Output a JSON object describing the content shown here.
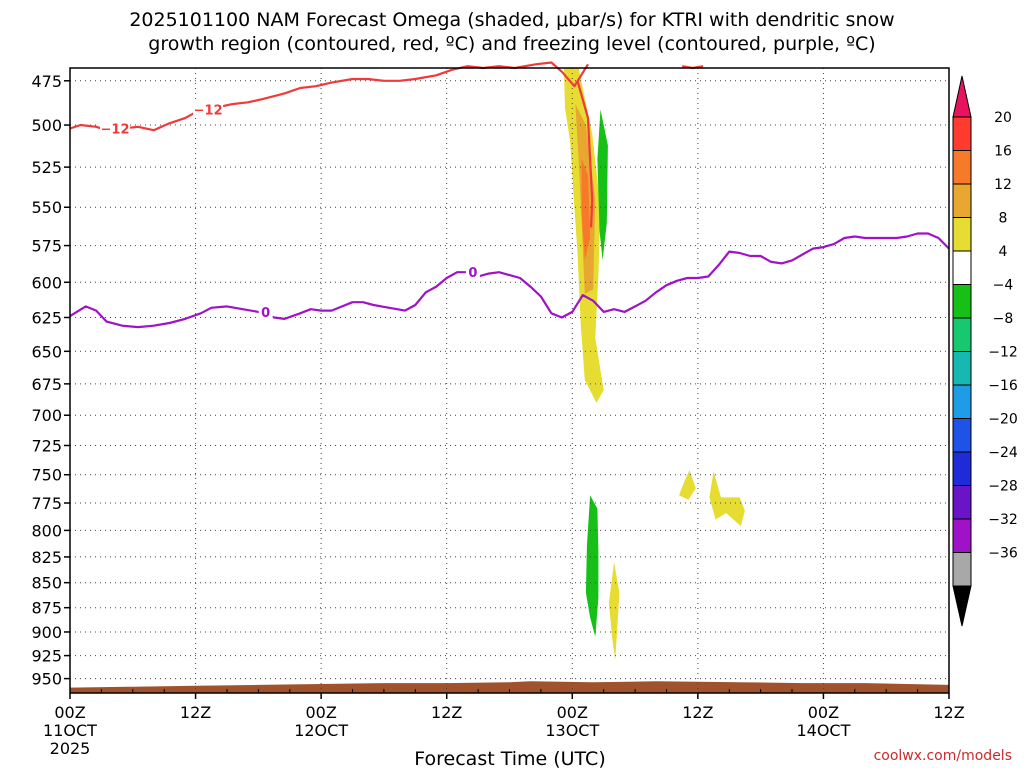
{
  "title_line1": "2025101100 NAM Forecast Omega (shaded, μbar/s) for KTRI with dendritic snow",
  "title_line2": "growth region (contoured, red, ºC) and freezing level (contoured, purple, ºC)",
  "credit": "coolwx.com/models",
  "chart_data": {
    "type": "time-height cross section",
    "xlabel": "Forecast Time (UTC)",
    "x_ticks": [
      {
        "h": 0,
        "line1": "00Z",
        "line2": "11OCT",
        "line3": "2025"
      },
      {
        "h": 12,
        "line1": "12Z",
        "line2": "",
        "line3": ""
      },
      {
        "h": 24,
        "line1": "00Z",
        "line2": "12OCT",
        "line3": ""
      },
      {
        "h": 36,
        "line1": "12Z",
        "line2": "",
        "line3": ""
      },
      {
        "h": 48,
        "line1": "00Z",
        "line2": "13OCT",
        "line3": ""
      },
      {
        "h": 60,
        "line1": "12Z",
        "line2": "",
        "line3": ""
      },
      {
        "h": 72,
        "line1": "00Z",
        "line2": "14OCT",
        "line3": ""
      },
      {
        "h": 84,
        "line1": "12Z",
        "line2": "",
        "line3": ""
      }
    ],
    "xlim_hours": [
      0,
      84
    ],
    "y_ticks": [
      475,
      500,
      525,
      550,
      575,
      600,
      625,
      650,
      675,
      700,
      725,
      750,
      775,
      800,
      825,
      850,
      875,
      900,
      925,
      950
    ],
    "ylim_hPa": [
      966,
      468
    ],
    "y_scale": "log-pressure, inverted",
    "grid": true,
    "colorbar": {
      "labels": [
        "20",
        "16",
        "12",
        "8",
        "4",
        "−4",
        "−8",
        "−12",
        "−16",
        "−20",
        "−24",
        "−28",
        "−32",
        "−36"
      ],
      "colors": [
        "#e8135f",
        "#ff3b2f",
        "#f7792a",
        "#e8a730",
        "#e6dc32",
        "#ffffff",
        "#17c017",
        "#17c870",
        "#17b8b0",
        "#1f9ce6",
        "#1f52e6",
        "#1f2ad8",
        "#6a14c8",
        "#a012c8",
        "#a8a8a8",
        "#000000"
      ]
    },
    "contours": [
      {
        "name": "-12",
        "level": -12,
        "color": "#f03a3a",
        "points": [
          [
            0,
            502
          ],
          [
            1,
            500
          ],
          [
            2.5,
            501
          ],
          [
            3.5,
            503
          ],
          [
            5,
            502
          ],
          [
            6.5,
            501
          ],
          [
            8,
            503
          ],
          [
            9.5,
            499
          ],
          [
            11,
            496
          ],
          [
            12.5,
            491
          ],
          [
            14,
            490
          ],
          [
            15.5,
            488
          ],
          [
            17,
            487
          ],
          [
            18.5,
            485
          ],
          [
            20.5,
            482
          ],
          [
            22,
            479
          ],
          [
            23.5,
            478
          ],
          [
            25,
            476
          ],
          [
            27,
            474
          ],
          [
            28.5,
            474
          ],
          [
            30,
            475
          ],
          [
            31.5,
            475
          ],
          [
            33,
            474
          ],
          [
            35,
            472
          ],
          [
            36.5,
            469
          ],
          [
            38,
            467
          ],
          [
            39.5,
            468
          ],
          [
            41,
            467
          ],
          [
            42.5,
            468
          ],
          [
            44.5,
            466
          ],
          [
            46,
            465
          ],
          [
            47,
            470
          ],
          [
            48.2,
            478
          ],
          [
            49.5,
            466
          ]
        ]
      },
      {
        "name": "-12",
        "level": -12,
        "color": "#f03a3a",
        "points": [
          [
            48.5,
            475
          ],
          [
            49.5,
            496
          ],
          [
            49.7,
            520
          ],
          [
            49.9,
            545
          ],
          [
            49.8,
            563
          ]
        ]
      },
      {
        "name": "",
        "level": -12,
        "color": "#f03a3a",
        "points": [
          [
            58.5,
            467
          ],
          [
            59.5,
            468
          ],
          [
            60.5,
            467
          ]
        ]
      },
      {
        "name": "0",
        "level": 0,
        "color": "#a012c8",
        "points": [
          [
            0,
            624
          ],
          [
            1.5,
            617
          ],
          [
            2.5,
            620
          ],
          [
            3.5,
            628
          ],
          [
            5,
            631
          ],
          [
            6.5,
            632
          ],
          [
            8,
            631
          ],
          [
            9.5,
            629
          ],
          [
            11,
            626
          ],
          [
            12.5,
            622
          ],
          [
            13.5,
            618
          ],
          [
            15,
            617
          ],
          [
            16.5,
            619
          ],
          [
            18,
            621
          ],
          [
            19.5,
            625
          ],
          [
            20.5,
            626
          ],
          [
            22,
            622
          ],
          [
            23,
            619
          ],
          [
            24,
            620
          ],
          [
            25,
            620
          ],
          [
            26,
            617
          ],
          [
            27,
            614
          ],
          [
            28,
            614
          ],
          [
            29,
            616
          ],
          [
            30.5,
            618
          ],
          [
            32,
            620
          ],
          [
            33,
            616
          ],
          [
            34,
            607
          ],
          [
            35,
            603
          ],
          [
            36,
            597
          ],
          [
            37,
            593
          ],
          [
            38,
            593
          ],
          [
            39,
            596
          ],
          [
            40,
            594
          ],
          [
            41,
            593
          ],
          [
            42,
            595
          ],
          [
            43,
            597
          ],
          [
            44,
            603
          ],
          [
            45,
            610
          ],
          [
            46,
            622
          ],
          [
            47,
            625
          ],
          [
            48,
            621
          ],
          [
            49,
            609
          ],
          [
            50,
            613
          ],
          [
            51,
            621
          ],
          [
            52,
            619
          ],
          [
            53,
            621
          ],
          [
            54,
            617
          ],
          [
            55,
            613
          ],
          [
            56,
            607
          ],
          [
            57,
            602
          ],
          [
            58,
            599
          ],
          [
            59,
            597
          ],
          [
            60,
            597
          ],
          [
            61,
            596
          ],
          [
            62,
            588
          ],
          [
            63,
            579
          ],
          [
            64,
            580
          ],
          [
            65,
            582
          ],
          [
            66,
            582
          ],
          [
            67,
            586
          ],
          [
            68,
            587
          ],
          [
            69,
            585
          ],
          [
            70,
            581
          ],
          [
            71,
            577
          ],
          [
            72,
            576
          ],
          [
            73,
            574
          ],
          [
            74,
            570
          ],
          [
            75,
            569
          ],
          [
            76,
            570
          ],
          [
            77,
            570
          ],
          [
            78,
            570
          ],
          [
            79,
            570
          ],
          [
            80,
            569
          ],
          [
            81,
            567
          ],
          [
            82,
            567
          ],
          [
            83,
            570
          ],
          [
            84,
            577
          ]
        ]
      }
    ],
    "omega_regions": [
      {
        "value": 4,
        "color": "#e6dc32",
        "points": [
          [
            47.2,
            468
          ],
          [
            48.6,
            468
          ],
          [
            49.9,
            505
          ],
          [
            50.7,
            550
          ],
          [
            50.5,
            595
          ],
          [
            50.2,
            640
          ],
          [
            51.0,
            680
          ],
          [
            50.3,
            690
          ],
          [
            49.2,
            672
          ],
          [
            48.8,
            630
          ],
          [
            48.5,
            580
          ],
          [
            48.1,
            540
          ],
          [
            47.8,
            510
          ],
          [
            47.3,
            490
          ]
        ]
      },
      {
        "value": 8,
        "color": "#e8a730",
        "points": [
          [
            48.3,
            488
          ],
          [
            49.3,
            500
          ],
          [
            50.2,
            545
          ],
          [
            50.0,
            605
          ],
          [
            49.2,
            608
          ],
          [
            48.9,
            560
          ],
          [
            48.6,
            520
          ]
        ]
      },
      {
        "value": 12,
        "color": "#f7792a",
        "points": [
          [
            48.9,
            520
          ],
          [
            49.5,
            530
          ],
          [
            49.7,
            570
          ],
          [
            49.2,
            585
          ],
          [
            48.9,
            555
          ]
        ]
      },
      {
        "value": -8,
        "color": "#17c017",
        "points": [
          [
            50.7,
            491
          ],
          [
            51.4,
            512
          ],
          [
            51.3,
            560
          ],
          [
            50.9,
            585
          ],
          [
            50.6,
            565
          ],
          [
            50.4,
            520
          ]
        ]
      },
      {
        "value": 4,
        "color": "#e6dc32",
        "points": [
          [
            59.2,
            746
          ],
          [
            59.8,
            762
          ],
          [
            59.1,
            772
          ],
          [
            58.2,
            768
          ],
          [
            58.7,
            756
          ]
        ]
      },
      {
        "value": 4,
        "color": "#e6dc32",
        "points": [
          [
            61.5,
            747
          ],
          [
            62.2,
            770
          ],
          [
            64.0,
            770
          ],
          [
            64.5,
            782
          ],
          [
            64.1,
            796
          ],
          [
            63.4,
            790
          ],
          [
            62.7,
            784
          ],
          [
            61.7,
            790
          ],
          [
            61.1,
            770
          ]
        ]
      },
      {
        "value": -8,
        "color": "#17c017",
        "points": [
          [
            49.7,
            768
          ],
          [
            50.4,
            780
          ],
          [
            50.5,
            820
          ],
          [
            50.5,
            865
          ],
          [
            50.2,
            905
          ],
          [
            49.7,
            885
          ],
          [
            49.3,
            860
          ],
          [
            49.4,
            815
          ]
        ]
      },
      {
        "value": 4,
        "color": "#e6dc32",
        "points": [
          [
            52.0,
            830
          ],
          [
            52.5,
            860
          ],
          [
            52.3,
            895
          ],
          [
            52.1,
            930
          ],
          [
            51.8,
            905
          ],
          [
            51.5,
            870
          ]
        ]
      }
    ],
    "terrain_top_hPa": [
      [
        0,
        960
      ],
      [
        6,
        959
      ],
      [
        12,
        958
      ],
      [
        18,
        957
      ],
      [
        24,
        956
      ],
      [
        30,
        955
      ],
      [
        36,
        955
      ],
      [
        42,
        954
      ],
      [
        44,
        953
      ],
      [
        50,
        954
      ],
      [
        56,
        953
      ],
      [
        64,
        954
      ],
      [
        70,
        955
      ],
      [
        76,
        955
      ],
      [
        84,
        957
      ]
    ]
  }
}
